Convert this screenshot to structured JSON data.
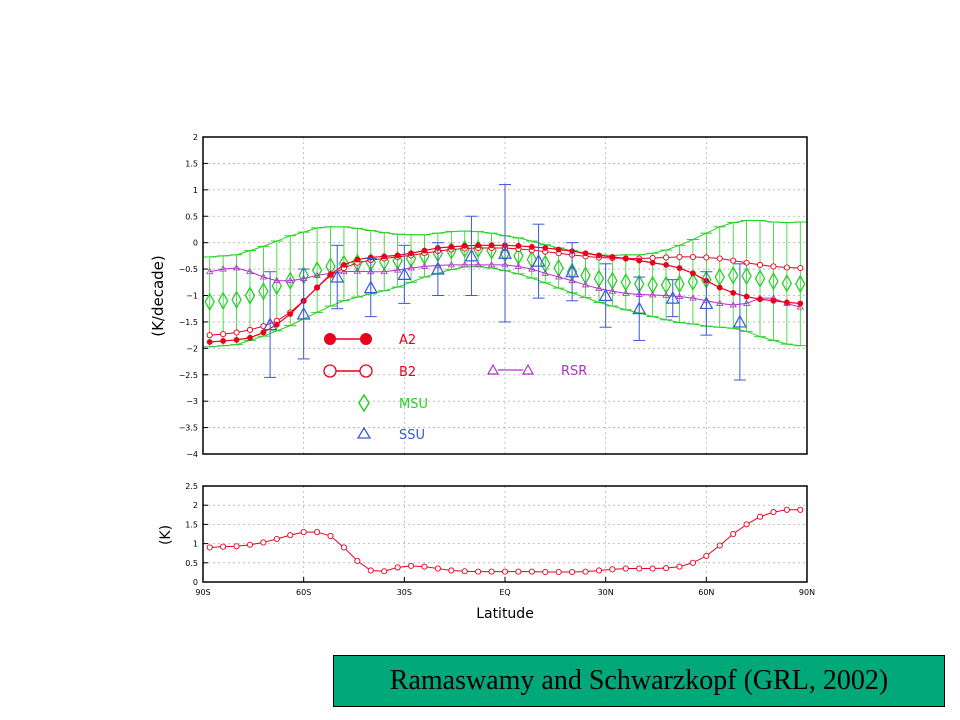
{
  "colors": {
    "A2": "#e8001c",
    "B2": "#e8001c",
    "MSU": "#28d028",
    "SSU": "#3a5ad8",
    "RSR": "#b030c8",
    "grid": "#b0b0b0"
  },
  "chart_data": [
    {
      "type": "line",
      "ylabel": "(K/decade)",
      "xlabel": "",
      "xlim": [
        -90,
        90
      ],
      "ylim": [
        -4,
        2
      ],
      "yticks": [
        {
          "v": 2,
          "t": "2"
        },
        {
          "v": 1.5,
          "t": "1.5"
        },
        {
          "v": 1,
          "t": "1"
        },
        {
          "v": 0.5,
          "t": "0.5"
        },
        {
          "v": 0,
          "t": "0"
        },
        {
          "v": -0.5,
          "t": "−0.5"
        },
        {
          "v": -1,
          "t": "−1"
        },
        {
          "v": -1.5,
          "t": "−1.5"
        },
        {
          "v": -2,
          "t": "−2"
        },
        {
          "v": -2.5,
          "t": "−2.5"
        },
        {
          "v": -3,
          "t": "−3"
        },
        {
          "v": -3.5,
          "t": "−3.5"
        },
        {
          "v": -4,
          "t": "−4"
        }
      ],
      "grid": true,
      "legend": [
        {
          "name": "A2",
          "key": "A2"
        },
        {
          "name": "B2",
          "key": "B2"
        },
        {
          "name": "RSR",
          "key": "RSR"
        },
        {
          "name": "MSU",
          "key": "MSU"
        },
        {
          "name": "SSU",
          "key": "SSU"
        }
      ],
      "series": {
        "A2": {
          "x": [
            -88,
            -84,
            -80,
            -76,
            -72,
            -68,
            -64,
            -60,
            -56,
            -52,
            -48,
            -44,
            -40,
            -36,
            -32,
            -28,
            -24,
            -20,
            -16,
            -12,
            -8,
            -4,
            0,
            4,
            8,
            12,
            16,
            20,
            24,
            28,
            32,
            36,
            40,
            44,
            48,
            52,
            56,
            60,
            64,
            68,
            72,
            76,
            80,
            84,
            88
          ],
          "y": [
            -1.88,
            -1.86,
            -1.84,
            -1.8,
            -1.7,
            -1.55,
            -1.35,
            -1.1,
            -0.85,
            -0.6,
            -0.42,
            -0.32,
            -0.28,
            -0.26,
            -0.24,
            -0.2,
            -0.15,
            -0.1,
            -0.08,
            -0.06,
            -0.05,
            -0.05,
            -0.05,
            -0.06,
            -0.08,
            -0.1,
            -0.13,
            -0.16,
            -0.2,
            -0.24,
            -0.27,
            -0.3,
            -0.34,
            -0.38,
            -0.42,
            -0.48,
            -0.58,
            -0.72,
            -0.85,
            -0.95,
            -1.02,
            -1.07,
            -1.1,
            -1.13,
            -1.15
          ]
        },
        "B2": {
          "x": [
            -88,
            -84,
            -80,
            -76,
            -72,
            -68,
            -64,
            -60,
            -56,
            -52,
            -48,
            -44,
            -40,
            -36,
            -32,
            -28,
            -24,
            -20,
            -16,
            -12,
            -8,
            -4,
            0,
            4,
            8,
            12,
            16,
            20,
            24,
            28,
            32,
            36,
            40,
            44,
            48,
            52,
            56,
            60,
            64,
            68,
            72,
            76,
            80,
            84,
            88
          ],
          "y": [
            -1.75,
            -1.73,
            -1.7,
            -1.65,
            -1.58,
            -1.48,
            -1.32,
            -1.1,
            -0.85,
            -0.62,
            -0.48,
            -0.38,
            -0.33,
            -0.3,
            -0.27,
            -0.24,
            -0.2,
            -0.16,
            -0.13,
            -0.11,
            -0.1,
            -0.1,
            -0.1,
            -0.12,
            -0.14,
            -0.17,
            -0.2,
            -0.23,
            -0.26,
            -0.28,
            -0.29,
            -0.3,
            -0.3,
            -0.29,
            -0.28,
            -0.27,
            -0.27,
            -0.28,
            -0.3,
            -0.34,
            -0.38,
            -0.42,
            -0.45,
            -0.47,
            -0.48
          ]
        },
        "RSR": {
          "x": [
            -88,
            -84,
            -80,
            -76,
            -72,
            -68,
            -64,
            -60,
            -56,
            -52,
            -48,
            -44,
            -40,
            -36,
            -32,
            -28,
            -24,
            -20,
            -16,
            -12,
            -8,
            -4,
            0,
            4,
            8,
            12,
            16,
            20,
            24,
            28,
            32,
            36,
            40,
            44,
            48,
            52,
            56,
            60,
            64,
            68,
            72,
            76,
            80,
            84,
            88
          ],
          "y": [
            -0.55,
            -0.5,
            -0.48,
            -0.55,
            -0.65,
            -0.72,
            -0.72,
            -0.68,
            -0.62,
            -0.58,
            -0.55,
            -0.54,
            -0.55,
            -0.55,
            -0.52,
            -0.48,
            -0.45,
            -0.43,
            -0.42,
            -0.42,
            -0.42,
            -0.42,
            -0.42,
            -0.45,
            -0.5,
            -0.58,
            -0.65,
            -0.72,
            -0.8,
            -0.87,
            -0.92,
            -0.96,
            -0.98,
            -0.99,
            -1.0,
            -1.02,
            -1.05,
            -1.1,
            -1.15,
            -1.18,
            -1.15,
            -1.05,
            -1.05,
            -1.15,
            -1.22
          ]
        },
        "MSU": {
          "x": [
            -88,
            -84,
            -80,
            -76,
            -72,
            -68,
            -64,
            -60,
            -56,
            -52,
            -48,
            -44,
            -40,
            -36,
            -32,
            -28,
            -24,
            -20,
            -16,
            -12,
            -8,
            -4,
            0,
            4,
            8,
            12,
            16,
            20,
            24,
            28,
            32,
            36,
            40,
            44,
            48,
            52,
            56,
            60,
            64,
            68,
            72,
            76,
            80,
            84,
            88
          ],
          "y": [
            -1.12,
            -1.1,
            -1.08,
            -1.0,
            -0.92,
            -0.82,
            -0.72,
            -0.62,
            -0.52,
            -0.45,
            -0.4,
            -0.38,
            -0.37,
            -0.36,
            -0.34,
            -0.3,
            -0.25,
            -0.2,
            -0.15,
            -0.12,
            -0.12,
            -0.15,
            -0.2,
            -0.25,
            -0.32,
            -0.4,
            -0.48,
            -0.55,
            -0.62,
            -0.68,
            -0.72,
            -0.75,
            -0.78,
            -0.8,
            -0.8,
            -0.78,
            -0.74,
            -0.7,
            -0.65,
            -0.62,
            -0.63,
            -0.68,
            -0.73,
            -0.77,
            -0.78
          ],
          "err": [
            0.85,
            0.85,
            0.85,
            0.85,
            0.85,
            0.85,
            0.85,
            0.82,
            0.8,
            0.75,
            0.7,
            0.65,
            0.6,
            0.55,
            0.5,
            0.45,
            0.4,
            0.38,
            0.36,
            0.34,
            0.33,
            0.33,
            0.33,
            0.34,
            0.35,
            0.36,
            0.38,
            0.4,
            0.42,
            0.45,
            0.48,
            0.52,
            0.55,
            0.6,
            0.66,
            0.73,
            0.8,
            0.88,
            0.95,
            1.0,
            1.05,
            1.1,
            1.12,
            1.15,
            1.17
          ]
        },
        "SSU": {
          "x": [
            -70,
            -60,
            -50,
            -40,
            -30,
            -20,
            -10,
            0,
            10,
            20,
            30,
            40,
            50,
            60,
            70
          ],
          "y": [
            -1.55,
            -1.35,
            -0.65,
            -0.85,
            -0.6,
            -0.5,
            -0.25,
            -0.2,
            -0.35,
            -0.55,
            -1.0,
            -1.25,
            -1.05,
            -1.15,
            -1.5
          ],
          "err": [
            1.0,
            0.85,
            0.6,
            0.55,
            0.55,
            0.5,
            0.75,
            1.3,
            0.7,
            0.55,
            0.6,
            0.6,
            0.35,
            0.6,
            1.1
          ]
        }
      }
    },
    {
      "type": "line",
      "ylabel": "(K)",
      "xlabel": "Latitude",
      "xlim": [
        -90,
        90
      ],
      "ylim": [
        0,
        2.5
      ],
      "yticks": [
        {
          "v": 2.5,
          "t": "2.5"
        },
        {
          "v": 2,
          "t": "2"
        },
        {
          "v": 1.5,
          "t": "1.5"
        },
        {
          "v": 1,
          "t": "1"
        },
        {
          "v": 0.5,
          "t": "0.5"
        },
        {
          "v": 0,
          "t": "0"
        }
      ],
      "xticks": [
        {
          "v": -90,
          "t": "90S"
        },
        {
          "v": -60,
          "t": "60S"
        },
        {
          "v": -30,
          "t": "30S"
        },
        {
          "v": 0,
          "t": "EQ"
        },
        {
          "v": 30,
          "t": "30N"
        },
        {
          "v": 60,
          "t": "60N"
        },
        {
          "v": 90,
          "t": "90N"
        }
      ],
      "grid": true,
      "series": {
        "diff": {
          "x": [
            -88,
            -84,
            -80,
            -76,
            -72,
            -68,
            -64,
            -60,
            -56,
            -52,
            -48,
            -44,
            -40,
            -36,
            -32,
            -28,
            -24,
            -20,
            -16,
            -12,
            -8,
            -4,
            0,
            4,
            8,
            12,
            16,
            20,
            24,
            28,
            32,
            36,
            40,
            44,
            48,
            52,
            56,
            60,
            64,
            68,
            72,
            76,
            80,
            84,
            88
          ],
          "y": [
            0.9,
            0.92,
            0.93,
            0.97,
            1.03,
            1.12,
            1.22,
            1.3,
            1.3,
            1.2,
            0.9,
            0.55,
            0.3,
            0.28,
            0.38,
            0.42,
            0.4,
            0.35,
            0.3,
            0.28,
            0.27,
            0.27,
            0.27,
            0.27,
            0.27,
            0.26,
            0.26,
            0.26,
            0.27,
            0.3,
            0.33,
            0.35,
            0.35,
            0.35,
            0.36,
            0.4,
            0.5,
            0.68,
            0.95,
            1.25,
            1.5,
            1.7,
            1.82,
            1.88,
            1.88
          ]
        }
      }
    }
  ],
  "caption": "Ramaswamy and Schwarzkopf (GRL, 2002)"
}
